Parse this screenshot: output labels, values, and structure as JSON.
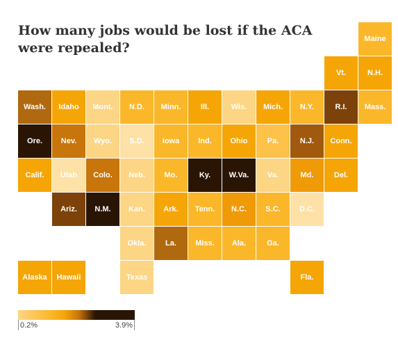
{
  "title": "How many jobs would be lost if the ACA were repealed?",
  "legend": {
    "min_label": "0.2%",
    "max_label": "3.9%",
    "min_value": 0.2,
    "max_value": 3.9,
    "colors": [
      "#fcd585",
      "#fbb72a",
      "#f5a506",
      "#c8750b",
      "#2a1505"
    ]
  },
  "states": [
    {
      "abbr": "Maine",
      "row": 0,
      "col": 10,
      "color": "#fbb72a"
    },
    {
      "abbr": "Vt.",
      "row": 1,
      "col": 9,
      "color": "#f5a506"
    },
    {
      "abbr": "N.H.",
      "row": 1,
      "col": 10,
      "color": "#f5a506"
    },
    {
      "abbr": "Wash.",
      "row": 2,
      "col": 0,
      "color": "#b0690f"
    },
    {
      "abbr": "Idaho",
      "row": 2,
      "col": 1,
      "color": "#f5a506"
    },
    {
      "abbr": "Mont.",
      "row": 2,
      "col": 2,
      "color": "#fcd585"
    },
    {
      "abbr": "N.D.",
      "row": 2,
      "col": 3,
      "color": "#fbb72a"
    },
    {
      "abbr": "Minn.",
      "row": 2,
      "col": 4,
      "color": "#fbb72a"
    },
    {
      "abbr": "Ill.",
      "row": 2,
      "col": 5,
      "color": "#f5a506"
    },
    {
      "abbr": "Wis.",
      "row": 2,
      "col": 6,
      "color": "#fcd585"
    },
    {
      "abbr": "Mich.",
      "row": 2,
      "col": 7,
      "color": "#f5a506"
    },
    {
      "abbr": "N.Y.",
      "row": 2,
      "col": 8,
      "color": "#fbb72a"
    },
    {
      "abbr": "R.I.",
      "row": 2,
      "col": 9,
      "color": "#7c4209"
    },
    {
      "abbr": "Mass.",
      "row": 2,
      "col": 10,
      "color": "#fbb72a"
    },
    {
      "abbr": "Ore.",
      "row": 3,
      "col": 0,
      "color": "#2a1505"
    },
    {
      "abbr": "Nev.",
      "row": 3,
      "col": 1,
      "color": "#c8750b"
    },
    {
      "abbr": "Wyo.",
      "row": 3,
      "col": 2,
      "color": "#fcd585"
    },
    {
      "abbr": "S.D.",
      "row": 3,
      "col": 3,
      "color": "#fde1a6"
    },
    {
      "abbr": "Iowa",
      "row": 3,
      "col": 4,
      "color": "#fbb72a"
    },
    {
      "abbr": "Ind.",
      "row": 3,
      "col": 5,
      "color": "#fbb72a"
    },
    {
      "abbr": "Ohio",
      "row": 3,
      "col": 6,
      "color": "#f5a506"
    },
    {
      "abbr": "Pa.",
      "row": 3,
      "col": 7,
      "color": "#fcc24a"
    },
    {
      "abbr": "N.J.",
      "row": 3,
      "col": 8,
      "color": "#a0590d"
    },
    {
      "abbr": "Conn.",
      "row": 3,
      "col": 9,
      "color": "#f5a506"
    },
    {
      "abbr": "Calif.",
      "row": 4,
      "col": 0,
      "color": "#f5a506"
    },
    {
      "abbr": "Utah",
      "row": 4,
      "col": 1,
      "color": "#fde1a6"
    },
    {
      "abbr": "Colo.",
      "row": 4,
      "col": 2,
      "color": "#c8750b"
    },
    {
      "abbr": "Neb.",
      "row": 4,
      "col": 3,
      "color": "#fcd585"
    },
    {
      "abbr": "Mo.",
      "row": 4,
      "col": 4,
      "color": "#fbb72a"
    },
    {
      "abbr": "Ky.",
      "row": 4,
      "col": 5,
      "color": "#2a1505"
    },
    {
      "abbr": "W.Va.",
      "row": 4,
      "col": 6,
      "color": "#2a1505"
    },
    {
      "abbr": "Va.",
      "row": 4,
      "col": 7,
      "color": "#fcd585"
    },
    {
      "abbr": "Md.",
      "row": 4,
      "col": 8,
      "color": "#f09a08"
    },
    {
      "abbr": "Del.",
      "row": 4,
      "col": 9,
      "color": "#f5a506"
    },
    {
      "abbr": "Ariz.",
      "row": 5,
      "col": 1,
      "color": "#7c4209"
    },
    {
      "abbr": "N.M.",
      "row": 5,
      "col": 2,
      "color": "#2a1505"
    },
    {
      "abbr": "Kan.",
      "row": 5,
      "col": 3,
      "color": "#fcd585"
    },
    {
      "abbr": "Ark.",
      "row": 5,
      "col": 4,
      "color": "#f5a506"
    },
    {
      "abbr": "Tenn.",
      "row": 5,
      "col": 5,
      "color": "#fbb72a"
    },
    {
      "abbr": "N.C.",
      "row": 5,
      "col": 6,
      "color": "#f09a08"
    },
    {
      "abbr": "S.C.",
      "row": 5,
      "col": 7,
      "color": "#fbb72a"
    },
    {
      "abbr": "D.C.",
      "row": 5,
      "col": 8,
      "color": "#fde1a6"
    },
    {
      "abbr": "Okla.",
      "row": 6,
      "col": 3,
      "color": "#fcd585"
    },
    {
      "abbr": "La.",
      "row": 6,
      "col": 4,
      "color": "#b0690f"
    },
    {
      "abbr": "Miss.",
      "row": 6,
      "col": 5,
      "color": "#fbb72a"
    },
    {
      "abbr": "Ala.",
      "row": 6,
      "col": 6,
      "color": "#fbb72a"
    },
    {
      "abbr": "Ga.",
      "row": 6,
      "col": 7,
      "color": "#fbb72a"
    },
    {
      "abbr": "Alaska",
      "row": 7,
      "col": 0,
      "color": "#f5a506"
    },
    {
      "abbr": "Hawaii",
      "row": 7,
      "col": 1,
      "color": "#f5a506"
    },
    {
      "abbr": "Texas",
      "row": 7,
      "col": 3,
      "color": "#fcd585"
    },
    {
      "abbr": "Fla.",
      "row": 7,
      "col": 8,
      "color": "#f5a506"
    }
  ]
}
